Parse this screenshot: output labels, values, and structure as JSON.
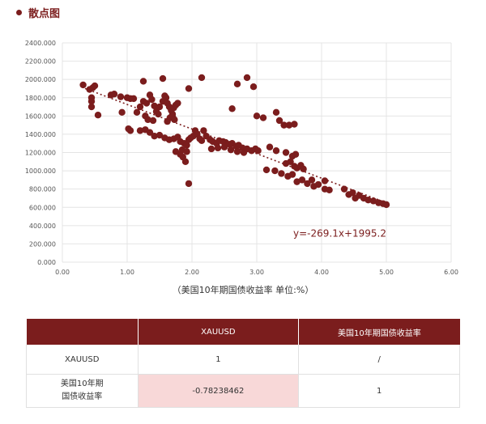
{
  "header": {
    "title": "散点图"
  },
  "chart_data": {
    "type": "scatter",
    "xlim": [
      0,
      6
    ],
    "ylim": [
      0,
      2400
    ],
    "x_ticks": [
      "0.00",
      "1.00",
      "2.00",
      "3.00",
      "4.00",
      "5.00",
      "6.00"
    ],
    "y_ticks": [
      "0.000",
      "200.000",
      "400.000",
      "600.000",
      "800.000",
      "1000.000",
      "1200.000",
      "1400.000",
      "1600.000",
      "1800.000",
      "2000.000",
      "2200.000",
      "2400.000"
    ],
    "xlabel": "（美国10年期国债收益率 单位:%）",
    "ylabel": "",
    "grid": true,
    "legend": "none",
    "colors": {
      "point": "#7b1d1d",
      "trendline": "#7b1d1d",
      "grid": "#e4e4e4",
      "axis_text": "#555555"
    },
    "trendline": {
      "slope": -269.1,
      "intercept": 1995.2,
      "x_range": [
        0.35,
        5.0
      ],
      "label": "y=-269.1x+1995.2"
    },
    "points": [
      [
        0.32,
        1940
      ],
      [
        0.42,
        1890
      ],
      [
        0.47,
        1910
      ],
      [
        0.5,
        1930
      ],
      [
        0.45,
        1800
      ],
      [
        0.45,
        1760
      ],
      [
        0.45,
        1700
      ],
      [
        0.55,
        1610
      ],
      [
        0.75,
        1830
      ],
      [
        0.8,
        1840
      ],
      [
        0.9,
        1810
      ],
      [
        1.0,
        1800
      ],
      [
        1.05,
        1790
      ],
      [
        1.1,
        1790
      ],
      [
        0.92,
        1640
      ],
      [
        1.15,
        1640
      ],
      [
        1.2,
        1700
      ],
      [
        1.25,
        1760
      ],
      [
        1.3,
        1740
      ],
      [
        1.35,
        1830
      ],
      [
        1.38,
        1780
      ],
      [
        1.42,
        1710
      ],
      [
        1.45,
        1650
      ],
      [
        1.48,
        1620
      ],
      [
        1.5,
        1700
      ],
      [
        1.55,
        1760
      ],
      [
        1.58,
        1820
      ],
      [
        1.6,
        1800
      ],
      [
        1.62,
        1740
      ],
      [
        1.65,
        1700
      ],
      [
        1.68,
        1660
      ],
      [
        1.7,
        1620
      ],
      [
        1.72,
        1690
      ],
      [
        1.75,
        1720
      ],
      [
        1.78,
        1740
      ],
      [
        1.28,
        1600
      ],
      [
        1.32,
        1560
      ],
      [
        1.4,
        1550
      ],
      [
        1.62,
        1540
      ],
      [
        1.66,
        1580
      ],
      [
        1.7,
        1600
      ],
      [
        1.73,
        1560
      ],
      [
        1.25,
        1980
      ],
      [
        1.55,
        2010
      ],
      [
        1.95,
        1900
      ],
      [
        2.15,
        2020
      ],
      [
        1.02,
        1460
      ],
      [
        1.05,
        1440
      ],
      [
        1.2,
        1440
      ],
      [
        1.28,
        1450
      ],
      [
        1.35,
        1420
      ],
      [
        1.42,
        1380
      ],
      [
        1.5,
        1390
      ],
      [
        1.58,
        1360
      ],
      [
        1.65,
        1340
      ],
      [
        1.72,
        1350
      ],
      [
        1.78,
        1370
      ],
      [
        1.82,
        1320
      ],
      [
        1.88,
        1300
      ],
      [
        1.92,
        1280
      ],
      [
        1.95,
        1340
      ],
      [
        1.98,
        1360
      ],
      [
        2.02,
        1380
      ],
      [
        2.05,
        1440
      ],
      [
        2.08,
        1400
      ],
      [
        2.12,
        1350
      ],
      [
        2.15,
        1330
      ],
      [
        2.18,
        1440
      ],
      [
        2.22,
        1380
      ],
      [
        2.28,
        1340
      ],
      [
        2.32,
        1320
      ],
      [
        2.38,
        1300
      ],
      [
        2.42,
        1330
      ],
      [
        2.48,
        1320
      ],
      [
        2.52,
        1310
      ],
      [
        2.58,
        1290
      ],
      [
        2.62,
        1300
      ],
      [
        2.68,
        1270
      ],
      [
        2.72,
        1280
      ],
      [
        2.78,
        1250
      ],
      [
        2.85,
        1240
      ],
      [
        2.92,
        1220
      ],
      [
        2.98,
        1240
      ],
      [
        3.02,
        1220
      ],
      [
        1.75,
        1210
      ],
      [
        1.82,
        1180
      ],
      [
        1.86,
        1150
      ],
      [
        1.9,
        1100
      ],
      [
        1.85,
        1230
      ],
      [
        1.92,
        1210
      ],
      [
        2.3,
        1240
      ],
      [
        2.4,
        1250
      ],
      [
        2.5,
        1260
      ],
      [
        2.6,
        1230
      ],
      [
        2.7,
        1210
      ],
      [
        2.8,
        1200
      ],
      [
        1.95,
        860
      ],
      [
        2.62,
        1680
      ],
      [
        2.7,
        1950
      ],
      [
        2.85,
        2020
      ],
      [
        2.95,
        1920
      ],
      [
        3.0,
        1600
      ],
      [
        3.1,
        1580
      ],
      [
        3.3,
        1640
      ],
      [
        3.35,
        1550
      ],
      [
        3.42,
        1500
      ],
      [
        3.5,
        1500
      ],
      [
        3.58,
        1510
      ],
      [
        3.2,
        1260
      ],
      [
        3.3,
        1220
      ],
      [
        3.45,
        1200
      ],
      [
        3.55,
        1160
      ],
      [
        3.6,
        1180
      ],
      [
        3.45,
        1080
      ],
      [
        3.52,
        1100
      ],
      [
        3.58,
        1050
      ],
      [
        3.62,
        1030
      ],
      [
        3.68,
        1060
      ],
      [
        3.72,
        1020
      ],
      [
        3.15,
        1010
      ],
      [
        3.28,
        1000
      ],
      [
        3.38,
        970
      ],
      [
        3.48,
        940
      ],
      [
        3.55,
        960
      ],
      [
        3.62,
        880
      ],
      [
        3.7,
        900
      ],
      [
        3.78,
        860
      ],
      [
        3.88,
        830
      ],
      [
        3.95,
        850
      ],
      [
        4.05,
        800
      ],
      [
        4.12,
        790
      ],
      [
        4.05,
        890
      ],
      [
        3.85,
        900
      ],
      [
        4.35,
        800
      ],
      [
        4.42,
        740
      ],
      [
        4.48,
        760
      ],
      [
        4.52,
        700
      ],
      [
        4.58,
        730
      ],
      [
        4.65,
        700
      ],
      [
        4.72,
        680
      ],
      [
        4.8,
        670
      ],
      [
        4.88,
        650
      ],
      [
        4.95,
        640
      ],
      [
        5.0,
        630
      ]
    ]
  },
  "table": {
    "headers": [
      "",
      "XAUUSD",
      "美国10年期国债收益率"
    ],
    "rows": [
      {
        "label": "XAUUSD",
        "values": [
          "1",
          "/"
        ]
      },
      {
        "label": "美国10年期\n国债收益率",
        "values": [
          "-0.78238462",
          "1"
        ]
      }
    ]
  }
}
